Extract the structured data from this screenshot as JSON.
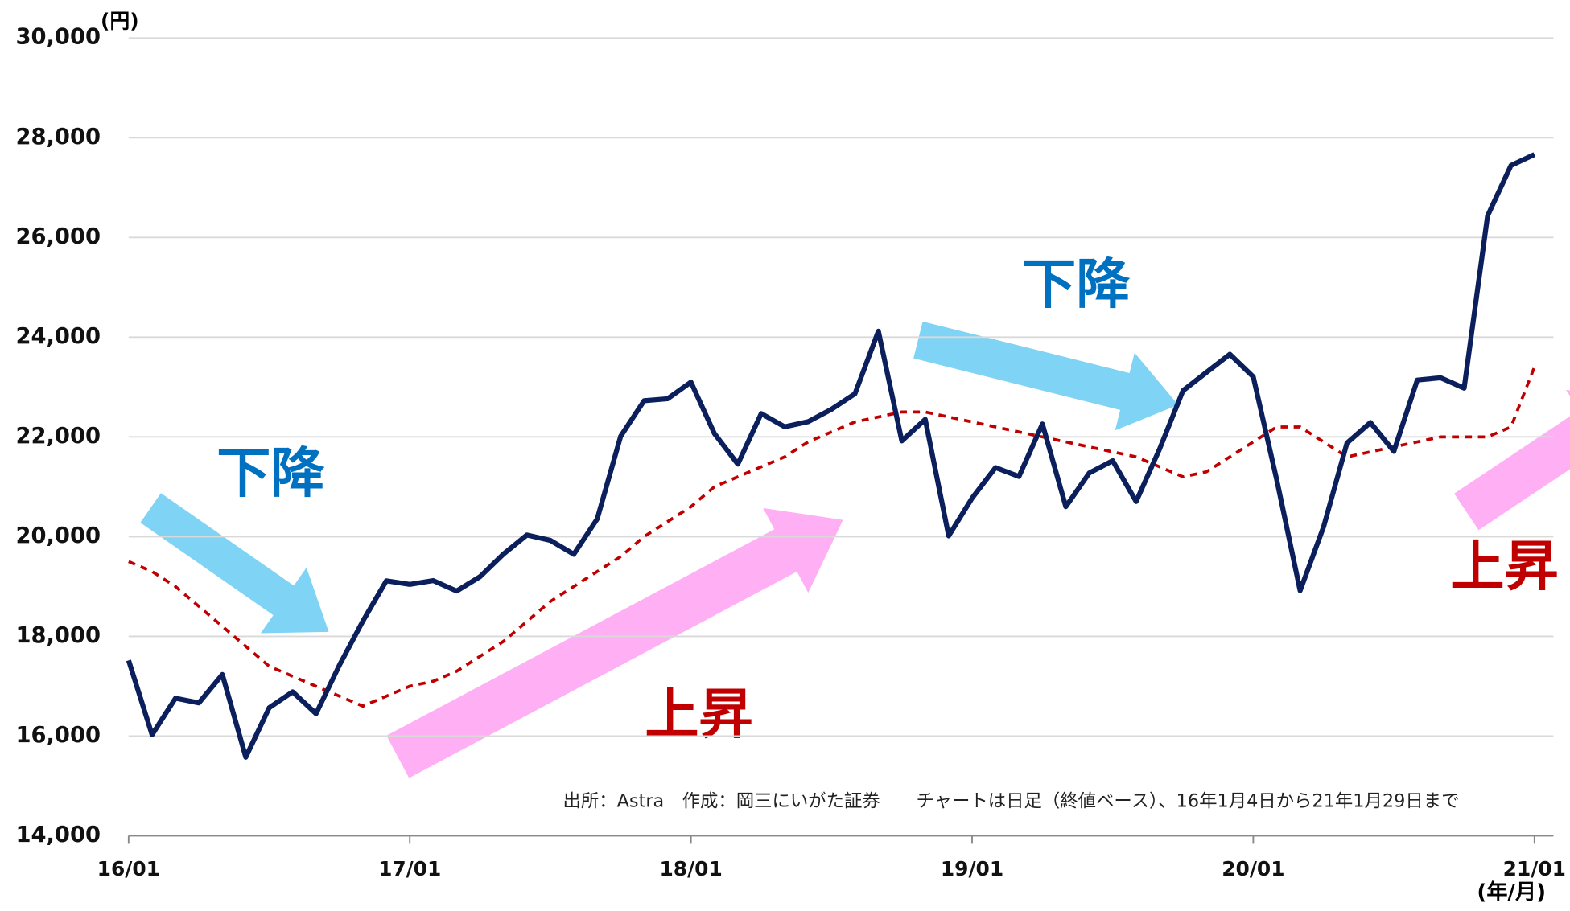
{
  "chart_data": {
    "type": "line",
    "unit_label": "(円)",
    "x_unit_label": "(年/月)",
    "annotations": [
      "下降",
      "上昇",
      "下降",
      "上昇"
    ],
    "source": "出所：Astra　作成：岡三にいがた証券　　チャートは日足（終値ベース）、16年1月4日から21年1月29日まで",
    "x": [
      "16/01",
      "16/02",
      "16/03",
      "16/04",
      "16/05",
      "16/06",
      "16/07",
      "16/08",
      "16/09",
      "16/10",
      "16/11",
      "16/12",
      "17/01",
      "17/02",
      "17/03",
      "17/04",
      "17/05",
      "17/06",
      "17/07",
      "17/08",
      "17/09",
      "17/10",
      "17/11",
      "17/12",
      "18/01",
      "18/02",
      "18/03",
      "18/04",
      "18/05",
      "18/06",
      "18/07",
      "18/08",
      "18/09",
      "18/10",
      "18/11",
      "18/12",
      "19/01",
      "19/02",
      "19/03",
      "19/04",
      "19/05",
      "19/06",
      "19/07",
      "19/08",
      "19/09",
      "19/10",
      "19/11",
      "19/12",
      "20/01",
      "20/02",
      "20/03",
      "20/04",
      "20/05",
      "20/06",
      "20/07",
      "20/08",
      "20/09",
      "20/10",
      "20/11",
      "20/12",
      "21/01"
    ],
    "xticks": [
      "16/01",
      "17/01",
      "18/01",
      "19/01",
      "20/01",
      "21/01"
    ],
    "series": [
      {
        "color": "#0b1f5c",
        "dashed": false,
        "values": [
          17518,
          16027,
          16759,
          16666,
          17235,
          15576,
          16569,
          16887,
          16450,
          17425,
          18308,
          19114,
          19041,
          19119,
          18909,
          19197,
          19651,
          20033,
          19925,
          19646,
          20356,
          22012,
          22725,
          22765,
          23098,
          22068,
          21454,
          22468,
          22202,
          22305,
          22554,
          22865,
          24120,
          21920,
          22351,
          20015,
          20773,
          21385,
          21206,
          22259,
          20601,
          21276,
          21522,
          20704,
          21756,
          22927,
          23294,
          23657,
          23205,
          21143,
          18917,
          20194,
          21878,
          22288,
          21710,
          23140,
          23185,
          22977,
          26434,
          27444,
          27663
        ]
      },
      {
        "color": "#c00000",
        "dashed": true,
        "values": [
          19500,
          19300,
          19000,
          18600,
          18200,
          17800,
          17400,
          17200,
          17000,
          16800,
          16600,
          16800,
          17000,
          17100,
          17300,
          17600,
          17900,
          18300,
          18700,
          19000,
          19300,
          19600,
          20000,
          20300,
          20600,
          21000,
          21200,
          21400,
          21600,
          21900,
          22100,
          22300,
          22400,
          22500,
          22500,
          22400,
          22300,
          22200,
          22100,
          22000,
          21900,
          21800,
          21700,
          21600,
          21400,
          21200,
          21300,
          21600,
          21900,
          22200,
          22200,
          21900,
          21600,
          21700,
          21800,
          21900,
          22000,
          22000,
          22000,
          22200,
          23400
        ]
      }
    ],
    "ylim": [
      14000,
      30000
    ],
    "yticks": [
      {
        "value": 14000,
        "label": "14,000"
      },
      {
        "value": 16000,
        "label": "16,000"
      },
      {
        "value": 18000,
        "label": "18,000"
      },
      {
        "value": 20000,
        "label": "20,000"
      },
      {
        "value": 22000,
        "label": "22,000"
      },
      {
        "value": 24000,
        "label": "24,000"
      },
      {
        "value": 26000,
        "label": "26,000"
      },
      {
        "value": 28000,
        "label": "28,000"
      },
      {
        "value": 30000,
        "label": "30,000"
      }
    ],
    "grid": true
  }
}
